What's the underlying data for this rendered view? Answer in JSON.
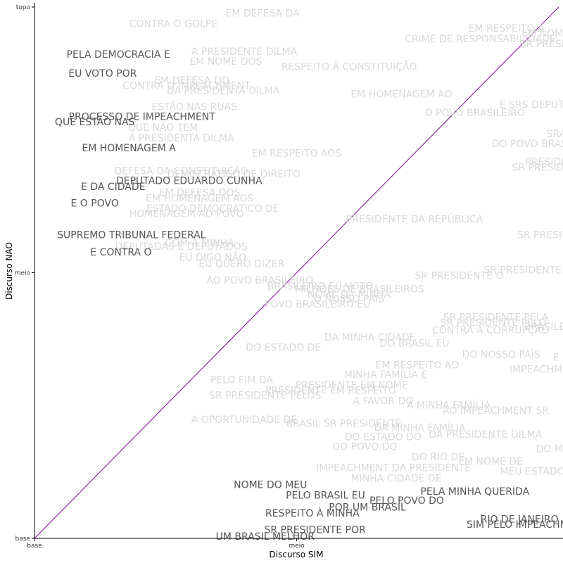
{
  "chart_data": {
    "type": "scatter",
    "xlabel": "Discurso SIM",
    "ylabel": "Discurso NAO",
    "xlim": [
      0,
      2
    ],
    "ylim": [
      0,
      2
    ],
    "x_ticks": [
      {
        "value": 0,
        "label": "base"
      },
      {
        "value": 1,
        "label": "meio"
      }
    ],
    "y_ticks": [
      {
        "value": 0,
        "label": "base"
      },
      {
        "value": 1,
        "label": "meio"
      },
      {
        "value": 2,
        "label": "topo"
      }
    ],
    "reference_line": {
      "from": [
        0,
        0
      ],
      "to": [
        2,
        2
      ],
      "color": "#8b2d9a"
    },
    "grid": false,
    "colors": {
      "highlight": "#555555",
      "faded": "#d9d9d9",
      "axis": "#000000"
    },
    "points": [
      {
        "label": "EM DEFESA DA",
        "x": 0.87,
        "y": 1.975,
        "highlight": false
      },
      {
        "label": "CONTRA O GOLPE",
        "x": 0.53,
        "y": 1.935,
        "highlight": false
      },
      {
        "label": "A PRESIDENTE DILMA",
        "x": 0.8,
        "y": 1.83,
        "highlight": false
      },
      {
        "label": "EM NOME DOS",
        "x": 0.73,
        "y": 1.793,
        "highlight": false
      },
      {
        "label": "PELA DEMOCRACIA E",
        "x": 0.32,
        "y": 1.82,
        "highlight": true
      },
      {
        "label": "EU VOTO POR",
        "x": 0.26,
        "y": 1.748,
        "highlight": true
      },
      {
        "label": "RESPEITO À CONSTITUIÇÃO",
        "x": 1.2,
        "y": 1.773,
        "highlight": false
      },
      {
        "label": "EM DEFESA DO",
        "x": 0.6,
        "y": 1.722,
        "highlight": false
      },
      {
        "label": "CONTRA O IMPEACHMENT",
        "x": 0.58,
        "y": 1.702,
        "highlight": false
      },
      {
        "label": "DA PRESIDENTA DILMA",
        "x": 0.72,
        "y": 1.683,
        "highlight": false
      },
      {
        "label": "EM HOMENAGEM AO",
        "x": 1.4,
        "y": 1.67,
        "highlight": false
      },
      {
        "label": "ESTÃO NAS RUAS",
        "x": 0.61,
        "y": 1.622,
        "highlight": false
      },
      {
        "label": "PROCESSO DE IMPEACHMENT",
        "x": 0.41,
        "y": 1.585,
        "highlight": true
      },
      {
        "label": "QUE ESTÃO NAS",
        "x": 0.23,
        "y": 1.565,
        "highlight": true
      },
      {
        "label": "QUE NÃO TEM",
        "x": 0.49,
        "y": 1.545,
        "highlight": false
      },
      {
        "label": "A PRESIDENTA DILMA",
        "x": 0.56,
        "y": 1.505,
        "highlight": false
      },
      {
        "label": "EM HOMENAGEM A",
        "x": 0.36,
        "y": 1.468,
        "highlight": true
      },
      {
        "label": "EM RESPEITO AOS",
        "x": 1.0,
        "y": 1.448,
        "highlight": false
      },
      {
        "label": "DEFESA DA CONSTITUIÇÃO",
        "x": 0.56,
        "y": 1.382,
        "highlight": false
      },
      {
        "label": "DEMOCRÁTICO DE DIREITO",
        "x": 0.76,
        "y": 1.37,
        "highlight": false
      },
      {
        "label": "DEPUTADO EDUARDO CUNHA",
        "x": 0.59,
        "y": 1.345,
        "highlight": true
      },
      {
        "label": "E DA CIDADE",
        "x": 0.3,
        "y": 1.322,
        "highlight": true
      },
      {
        "label": "EM DEFESA DOS",
        "x": 0.63,
        "y": 1.3,
        "highlight": false
      },
      {
        "label": "EM HOMENAGEM AOS",
        "x": 0.63,
        "y": 1.278,
        "highlight": false
      },
      {
        "label": "E O POVO",
        "x": 0.23,
        "y": 1.26,
        "highlight": true
      },
      {
        "label": "ESTADO DEMOCRÁTICO DE",
        "x": 0.68,
        "y": 1.24,
        "highlight": false
      },
      {
        "label": "HOMENAGEM AO POVO",
        "x": 0.58,
        "y": 1.22,
        "highlight": false
      },
      {
        "label": "PRESIDENTE DA REPÚBLICA",
        "x": 1.45,
        "y": 1.2,
        "highlight": false
      },
      {
        "label": "SUPREMO TRIBUNAL FEDERAL",
        "x": 0.37,
        "y": 1.14,
        "highlight": true
      },
      {
        "label": "COM A MINHA",
        "x": 0.63,
        "y": 1.11,
        "highlight": false
      },
      {
        "label": "DEPUTADAS E DEPUTADOS",
        "x": 0.56,
        "y": 1.097,
        "highlight": false
      },
      {
        "label": "E CONTRA O",
        "x": 0.33,
        "y": 1.075,
        "highlight": true
      },
      {
        "label": "EU DIGO NÃO",
        "x": 0.68,
        "y": 1.055,
        "highlight": false
      },
      {
        "label": "EU QUERO DIZER",
        "x": 0.79,
        "y": 1.032,
        "highlight": false
      },
      {
        "label": "AO POVO BRASILEIRO",
        "x": 0.86,
        "y": 0.97,
        "highlight": false
      },
      {
        "label": "BRASILEIRO EU VOTO",
        "x": 1.09,
        "y": 0.947,
        "highlight": false
      },
      {
        "label": "MILHÕES DE BRASILEIROS",
        "x": 1.24,
        "y": 0.937,
        "highlight": false
      },
      {
        "label": "NOME DA MINHA",
        "x": 1.2,
        "y": 0.917,
        "highlight": false
      },
      {
        "label": "O NOSSO PAÍS",
        "x": 1.2,
        "y": 0.9,
        "highlight": false
      },
      {
        "label": "POVO BRASILEIRO EU",
        "x": 1.08,
        "y": 0.88,
        "highlight": false
      },
      {
        "label": "SR PRESIDENTE O",
        "x": 1.62,
        "y": 0.987,
        "highlight": false
      },
      {
        "label": "DA MINHA CIDADE",
        "x": 1.28,
        "y": 0.755,
        "highlight": false
      },
      {
        "label": "DO BRASIL EU",
        "x": 1.45,
        "y": 0.733,
        "highlight": false
      },
      {
        "label": "DO ESTADO DE",
        "x": 0.95,
        "y": 0.716,
        "highlight": false
      },
      {
        "label": "DO NOSSO PAÍS",
        "x": 1.78,
        "y": 0.69,
        "highlight": false
      },
      {
        "label": "EM RESPEITO AO",
        "x": 1.46,
        "y": 0.65,
        "highlight": false
      },
      {
        "label": "MINHA FAMÍLIA E",
        "x": 1.34,
        "y": 0.615,
        "highlight": false
      },
      {
        "label": "PELO FIM DA",
        "x": 0.79,
        "y": 0.595,
        "highlight": false
      },
      {
        "label": "PRESIDENTE EM NOME",
        "x": 1.21,
        "y": 0.575,
        "highlight": false
      },
      {
        "label": "PRESIDENTE EM RESPEITO",
        "x": 1.13,
        "y": 0.555,
        "highlight": false
      },
      {
        "label": "SR PRESIDENTE PELOS",
        "x": 0.88,
        "y": 0.536,
        "highlight": false
      },
      {
        "label": "A FAVOR DO",
        "x": 1.33,
        "y": 0.515,
        "highlight": false
      },
      {
        "label": "A MINHA FAMÍLIA",
        "x": 1.58,
        "y": 0.5,
        "highlight": false
      },
      {
        "label": "AO IMPEACHMENT SR",
        "x": 1.76,
        "y": 0.48,
        "highlight": false
      },
      {
        "label": "A OPORTUNIDADE DE",
        "x": 0.8,
        "y": 0.445,
        "highlight": false
      },
      {
        "label": "BRASIL SR PRESIDENTE",
        "x": 1.18,
        "y": 0.43,
        "highlight": false
      },
      {
        "label": "DA MINHA FAMÍLIA",
        "x": 1.47,
        "y": 0.415,
        "highlight": false
      },
      {
        "label": "DA PRESIDENTE DILMA",
        "x": 1.72,
        "y": 0.39,
        "highlight": false
      },
      {
        "label": "DO ESTADO DO",
        "x": 1.33,
        "y": 0.38,
        "highlight": false
      },
      {
        "label": "DO POVO DO",
        "x": 1.26,
        "y": 0.343,
        "highlight": false
      },
      {
        "label": "DO RIO DE",
        "x": 1.54,
        "y": 0.305,
        "highlight": false
      },
      {
        "label": "EM NOME DE",
        "x": 1.74,
        "y": 0.287,
        "highlight": false
      },
      {
        "label": "IMPEACHMENT DA PRESIDENTE",
        "x": 1.37,
        "y": 0.264,
        "highlight": false
      },
      {
        "label": "MEU ESTADO D",
        "x": 1.92,
        "y": 0.25,
        "highlight": false
      },
      {
        "label": "MINHA CIDADE DE",
        "x": 1.38,
        "y": 0.224,
        "highlight": false
      },
      {
        "label": "NOME DO MEU",
        "x": 0.9,
        "y": 0.2,
        "highlight": true
      },
      {
        "label": "PELA MINHA QUERIDA",
        "x": 1.68,
        "y": 0.175,
        "highlight": true
      },
      {
        "label": "PELO BRASIL EU",
        "x": 1.11,
        "y": 0.16,
        "highlight": true
      },
      {
        "label": "PELO POVO DO",
        "x": 1.42,
        "y": 0.14,
        "highlight": true
      },
      {
        "label": "POR UM BRASIL",
        "x": 1.27,
        "y": 0.115,
        "highlight": true
      },
      {
        "label": "RESPEITO À MINHA",
        "x": 1.06,
        "y": 0.093,
        "highlight": true
      },
      {
        "label": "RIO DE JANEIRO",
        "x": 1.85,
        "y": 0.07,
        "highlight": true
      },
      {
        "label": "SIM PELO IMPEACHMENT",
        "x": 1.88,
        "y": 0.05,
        "highlight": true
      },
      {
        "label": "SR PRESIDENTE POR",
        "x": 1.07,
        "y": 0.03,
        "highlight": true
      },
      {
        "label": "UM BRASIL MELHOR",
        "x": 0.88,
        "y": 0.005,
        "highlight": true
      },
      {
        "label": "EM RESPEITO A",
        "x": 1.8,
        "y": 1.918,
        "highlight": false
      },
      {
        "label": "EM NOME D",
        "x": 1.97,
        "y": 1.9,
        "highlight": false
      },
      {
        "label": "CRIME DE RESPONSABILIDADE",
        "x": 1.7,
        "y": 1.878,
        "highlight": false
      },
      {
        "label": "SR PRESIDENTE",
        "x": 2.0,
        "y": 1.86,
        "highlight": false
      },
      {
        "label": "E SRS DEPUTADOS",
        "x": 1.95,
        "y": 1.63,
        "highlight": false
      },
      {
        "label": "O POVO BRASILEIRO",
        "x": 1.68,
        "y": 1.6,
        "highlight": false
      },
      {
        "label": "SRA",
        "x": 1.99,
        "y": 1.52,
        "highlight": false
      },
      {
        "label": "DO POVO BRASILEIRO",
        "x": 1.95,
        "y": 1.483,
        "highlight": false
      },
      {
        "label": "PRESIDENTE",
        "x": 1.99,
        "y": 1.415,
        "highlight": false
      },
      {
        "label": "SR PRESIDENTE",
        "x": 1.97,
        "y": 1.395,
        "highlight": false
      },
      {
        "label": "SR PRESIDENTE",
        "x": 1.99,
        "y": 1.14,
        "highlight": false
      },
      {
        "label": "SR PRESIDENTE E",
        "x": 1.88,
        "y": 1.008,
        "highlight": false
      },
      {
        "label": "SR PRESIDENTE PELA",
        "x": 1.76,
        "y": 0.83,
        "highlight": false
      },
      {
        "label": "SR PRESIDENTE PELO",
        "x": 1.75,
        "y": 0.81,
        "highlight": false
      },
      {
        "label": "CONTRA A CORRUPÇÃO",
        "x": 1.74,
        "y": 0.782,
        "highlight": false
      },
      {
        "label": "BRASILEIRO",
        "x": 1.98,
        "y": 0.795,
        "highlight": false
      },
      {
        "label": "IMPEACHMENT",
        "x": 1.95,
        "y": 0.635,
        "highlight": false
      },
      {
        "label": "E",
        "x": 1.99,
        "y": 0.68,
        "highlight": false
      },
      {
        "label": "DO MEU",
        "x": 1.99,
        "y": 0.335,
        "highlight": false
      }
    ]
  }
}
